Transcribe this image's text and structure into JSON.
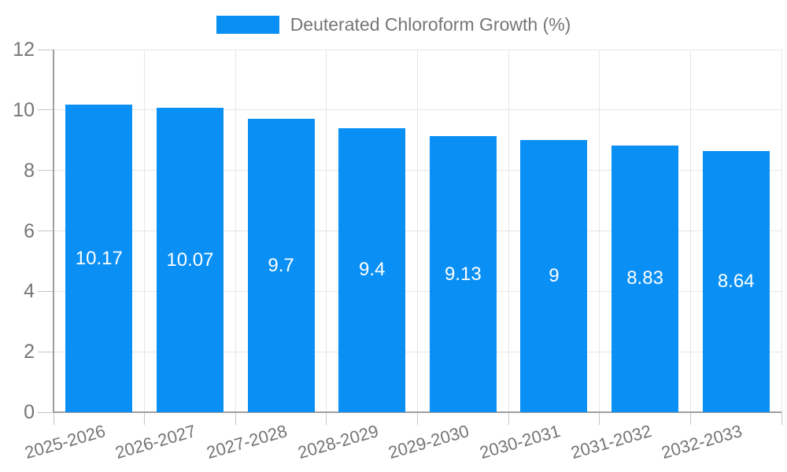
{
  "chart_data": {
    "type": "bar",
    "title": "Deuterated Chloroform Growth (%)",
    "legend_position": "top",
    "categories": [
      "2025-2026",
      "2026-2027",
      "2027-2028",
      "2028-2029",
      "2029-2030",
      "2030-2031",
      "2031-2032",
      "2032-2033"
    ],
    "values": [
      10.17,
      10.07,
      9.7,
      9.4,
      9.13,
      9,
      8.83,
      8.64
    ],
    "value_labels": [
      "10.17",
      "10.07",
      "9.7",
      "9.4",
      "9.13",
      "9",
      "8.83",
      "8.64"
    ],
    "xlabel": "",
    "ylabel": "",
    "ylim": [
      0,
      12
    ],
    "yticks": [
      0,
      2,
      4,
      6,
      8,
      10,
      12
    ],
    "ytick_labels": [
      "0",
      "2",
      "4",
      "6",
      "8",
      "10",
      "12"
    ],
    "grid": true,
    "colors": {
      "bar": "#0a90f5",
      "value_label": "#ffffff",
      "axis_text": "#757575",
      "gridline": "#e6e6e6",
      "axis_line": "#9e9e9e",
      "tick": "#c6c6c6",
      "background": "#ffffff"
    }
  }
}
